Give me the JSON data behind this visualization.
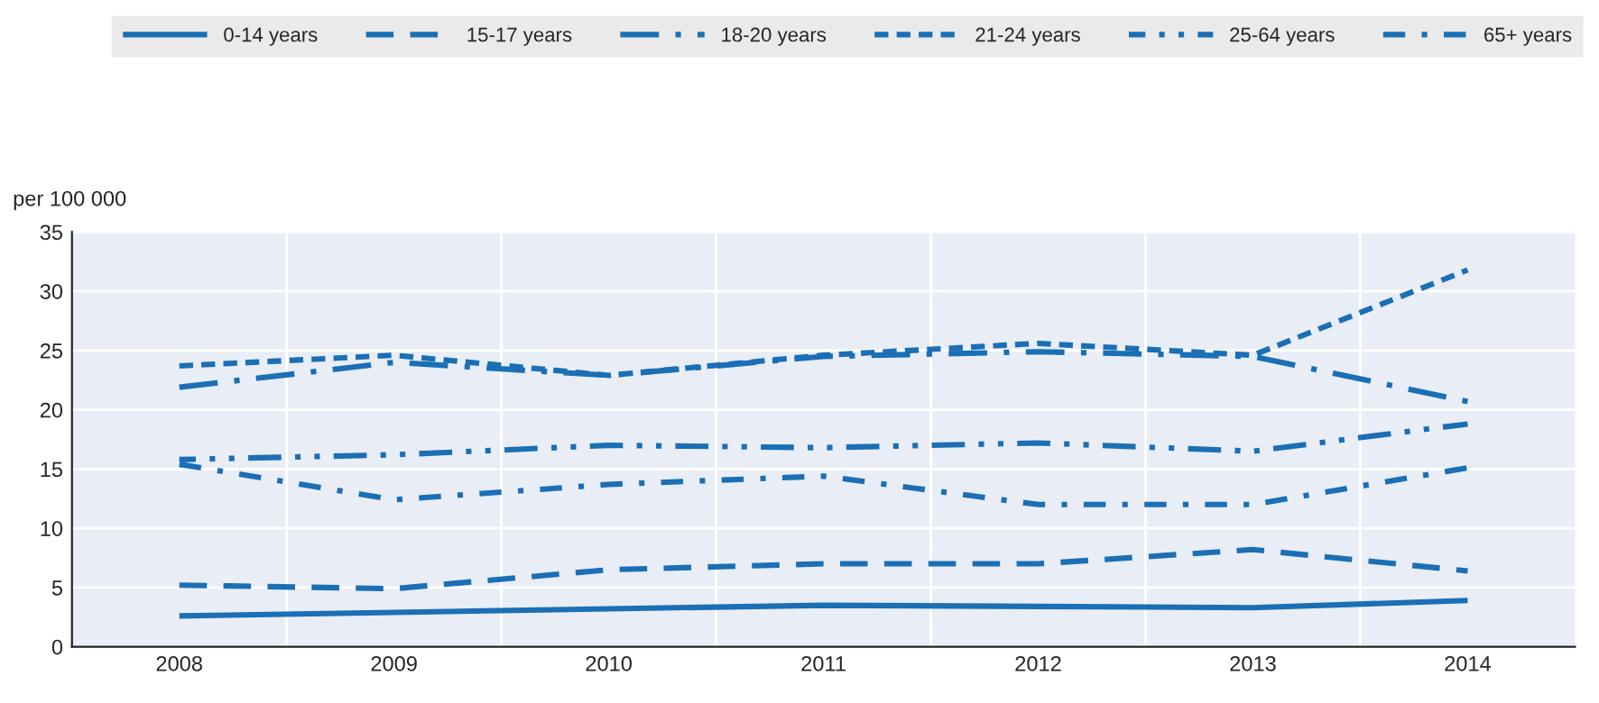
{
  "chart_data": {
    "type": "line",
    "ylabel": "per 100 000",
    "categories": [
      "2008",
      "2009",
      "2010",
      "2011",
      "2012",
      "2013",
      "2014"
    ],
    "series": [
      {
        "name": "0-14 years",
        "color": "#1a6fb5",
        "line_style": "solid",
        "values": [
          2.6,
          2.9,
          3.2,
          3.5,
          3.4,
          3.3,
          3.9
        ]
      },
      {
        "name": "15-17 years",
        "color": "#1a6fb5",
        "line_style": "dashed",
        "values": [
          5.2,
          4.9,
          6.5,
          7.0,
          7.0,
          8.2,
          6.4
        ]
      },
      {
        "name": "18-20 years",
        "color": "#1a6fb5",
        "line_style": "longdashdot",
        "values": [
          21.9,
          24.0,
          22.9,
          24.5,
          24.9,
          24.5,
          20.7
        ]
      },
      {
        "name": "21-24 years",
        "color": "#1a6fb5",
        "line_style": "shortdashed",
        "values": [
          23.7,
          24.6,
          22.9,
          24.6,
          25.6,
          24.6,
          31.8
        ]
      },
      {
        "name": "25-64 years",
        "color": "#1a6fb5",
        "line_style": "dashdotdot",
        "values": [
          15.8,
          16.2,
          17.0,
          16.8,
          17.2,
          16.5,
          18.8
        ]
      },
      {
        "name": "65+ years",
        "color": "#1a6fb5",
        "line_style": "dashdot",
        "values": [
          15.4,
          12.4,
          13.7,
          14.4,
          12.0,
          12.0,
          15.1
        ]
      }
    ],
    "ylim": [
      0,
      35
    ],
    "yticks": [
      0,
      5,
      10,
      15,
      20,
      25,
      30,
      35
    ],
    "grid": true,
    "legend": "top",
    "marker": "none"
  }
}
